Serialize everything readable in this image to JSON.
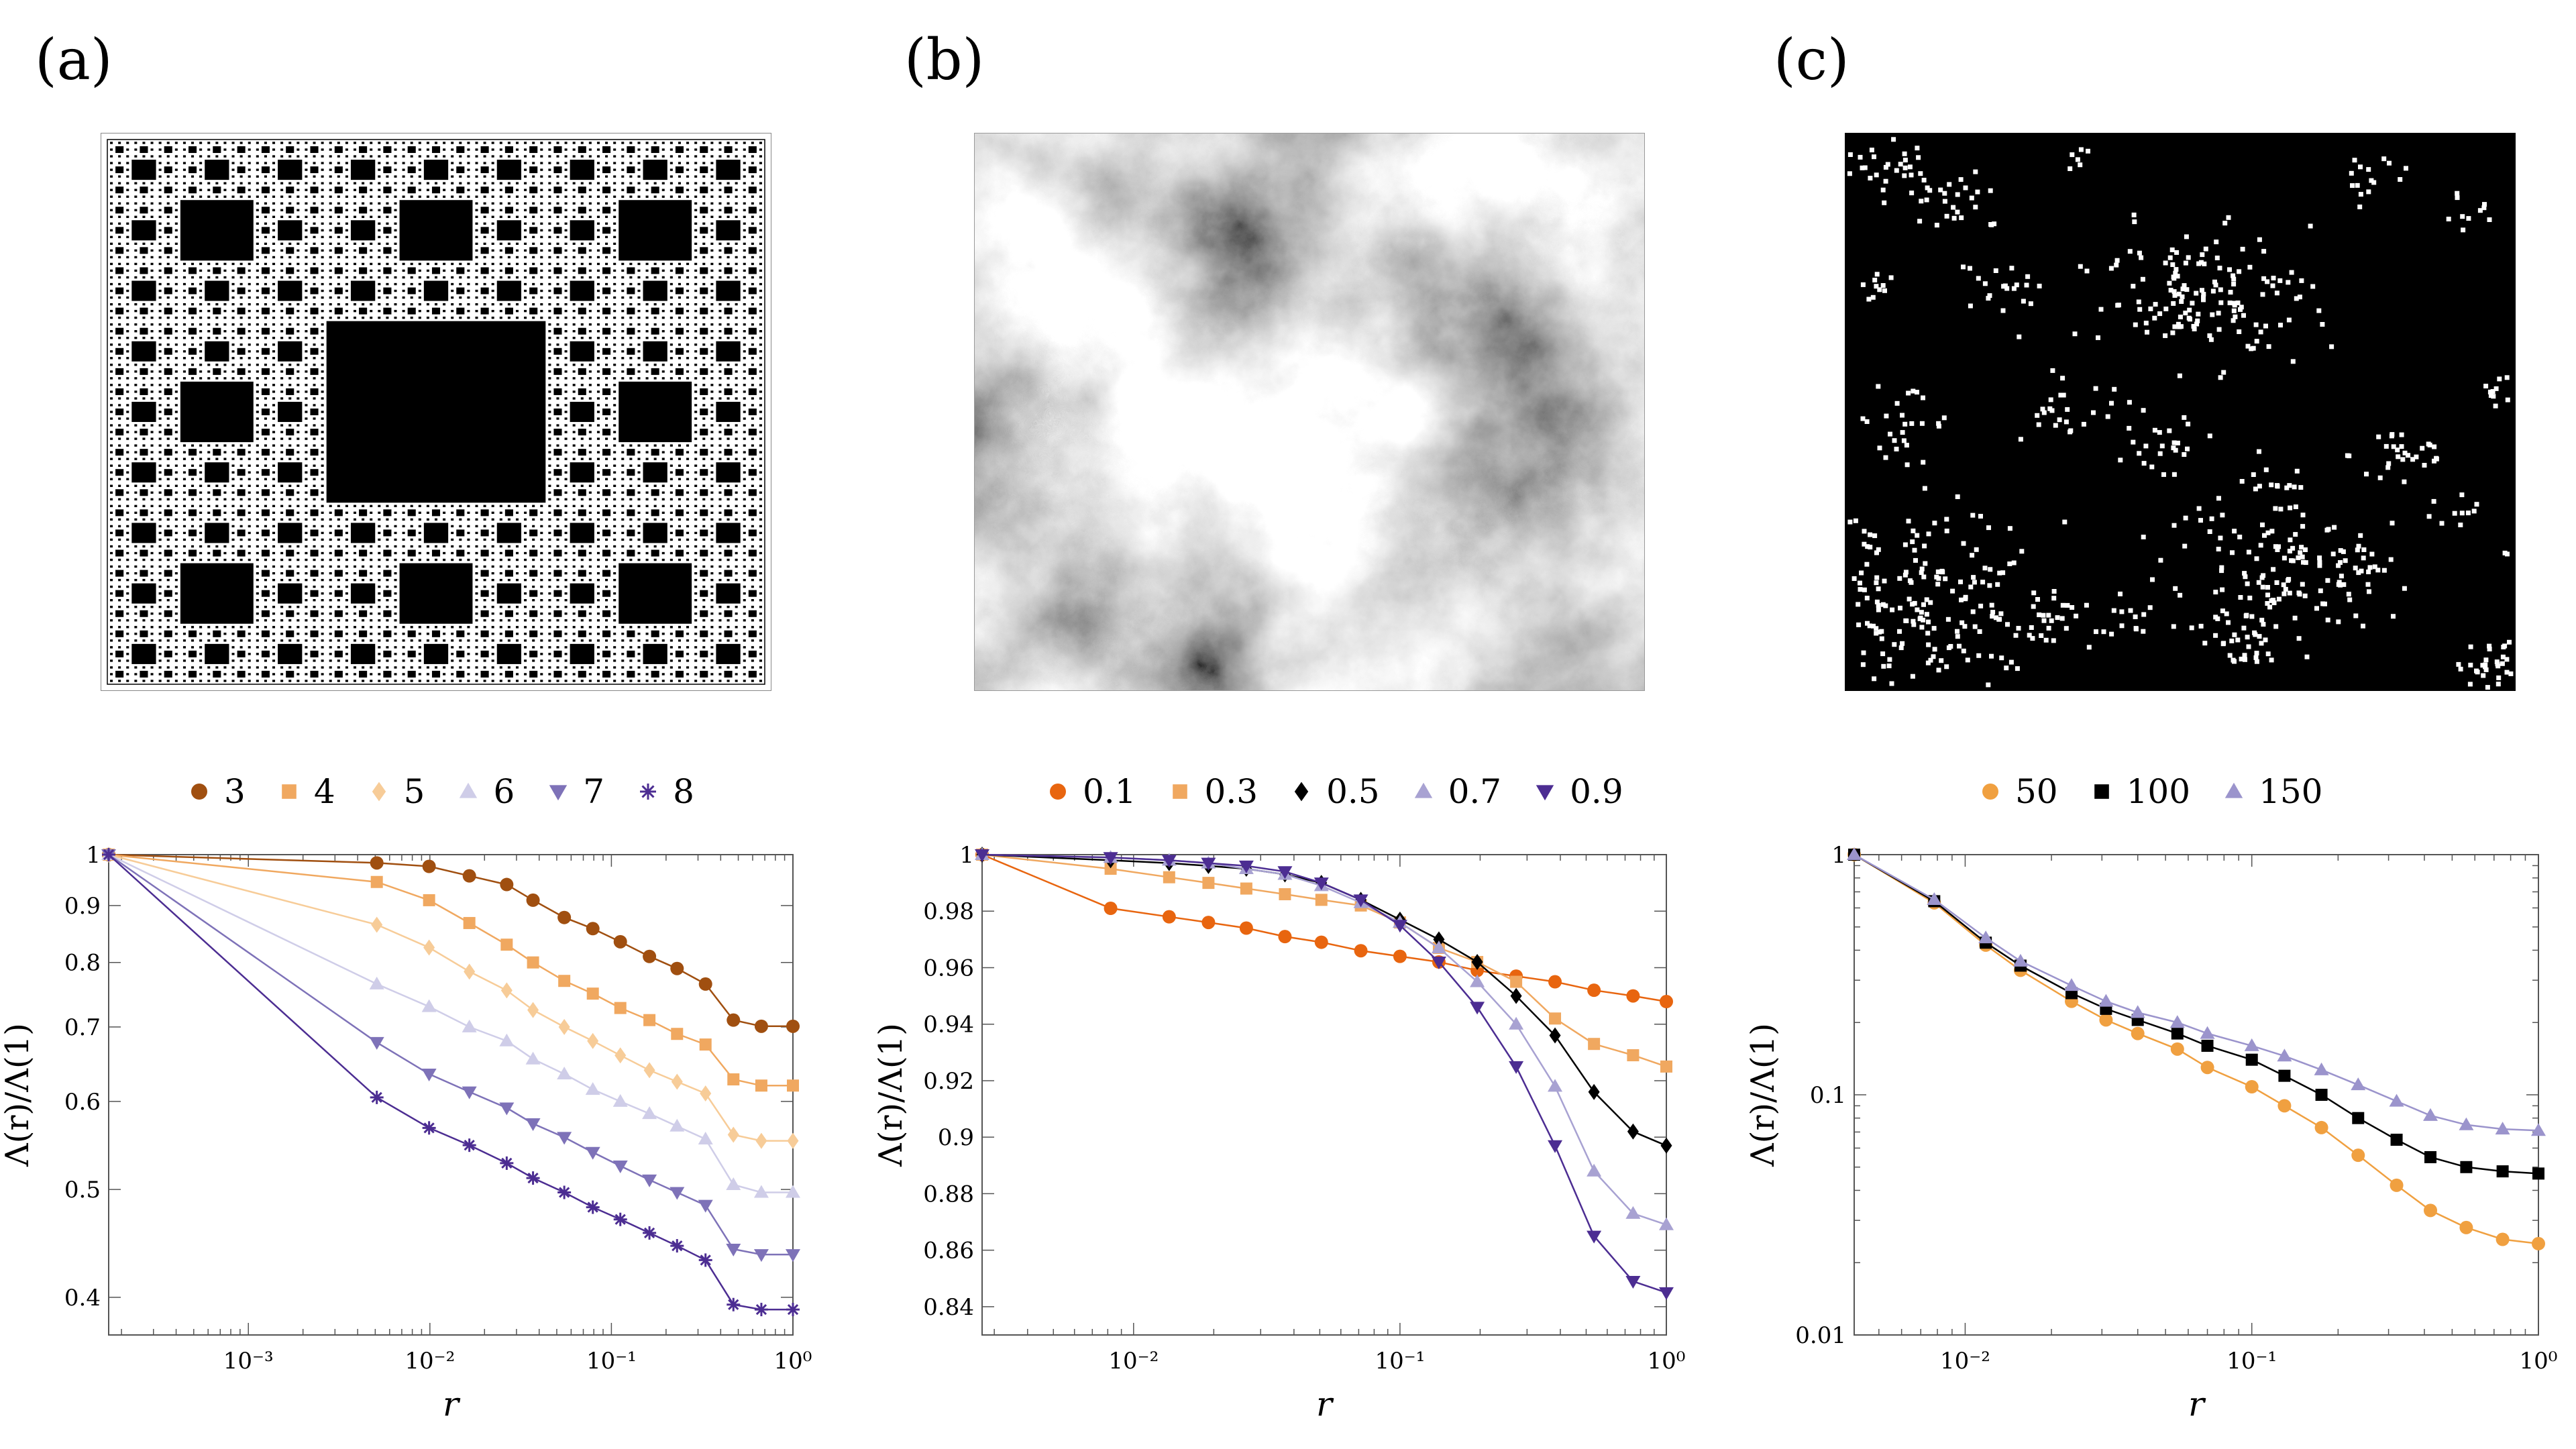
{
  "panels": [
    {
      "letter": "(a)",
      "image": "sierpinski-carpet"
    },
    {
      "letter": "(b)",
      "image": "fractional-gaussian-field"
    },
    {
      "letter": "(c)",
      "image": "clustered-point-pattern"
    }
  ],
  "colors": {
    "dark_orange": "#a04f10",
    "orange": "#e8650f",
    "light_orange": "#f0a860",
    "peach": "#f7cc98",
    "lavender": "#cfcde8",
    "light_purple": "#a8a2d2",
    "mid_purple": "#7e72b8",
    "dark_purple": "#4c2d92",
    "black": "#000000"
  },
  "chart_data": [
    {
      "type": "line",
      "xlabel": "r",
      "ylabel": "Λ(r)/Λ(1)",
      "xscale": "log",
      "yscale": "log",
      "xlim": [
        0.00017,
        1
      ],
      "ylim": [
        0.37,
        1.0
      ],
      "yticks": [
        "0.4",
        "0.5",
        "0.6",
        "0.7",
        "0.8",
        "0.9",
        "1"
      ],
      "ytick_values": [
        0.4,
        0.5,
        0.6,
        0.7,
        0.8,
        0.9,
        1.0
      ],
      "xticks": [
        "10⁻³",
        "10⁻²",
        "10⁻¹",
        "10⁰"
      ],
      "xtick_values": [
        0.001,
        0.01,
        0.1,
        1
      ],
      "legend_position": "top",
      "series": [
        {
          "name": "3",
          "marker": "circle",
          "color": "#a04f10",
          "x": [
            0.00017,
            0.0051,
            0.0099,
            0.0165,
            0.0265,
            0.037,
            0.055,
            0.079,
            0.112,
            0.162,
            0.23,
            0.33,
            0.47,
            0.67,
            1.0
          ],
          "y": [
            1.0,
            0.983,
            0.976,
            0.957,
            0.94,
            0.91,
            0.878,
            0.858,
            0.835,
            0.81,
            0.79,
            0.765,
            0.71,
            0.701,
            0.701
          ]
        },
        {
          "name": "4",
          "marker": "square",
          "color": "#f0a860",
          "x": [
            0.00017,
            0.0051,
            0.0099,
            0.0165,
            0.0265,
            0.037,
            0.055,
            0.079,
            0.112,
            0.162,
            0.23,
            0.33,
            0.47,
            0.67,
            1.0
          ],
          "y": [
            1.0,
            0.945,
            0.91,
            0.868,
            0.83,
            0.8,
            0.77,
            0.75,
            0.728,
            0.71,
            0.69,
            0.675,
            0.628,
            0.62,
            0.62
          ]
        },
        {
          "name": "5",
          "marker": "diamond",
          "color": "#f7cc98",
          "x": [
            0.00017,
            0.0051,
            0.0099,
            0.0165,
            0.0265,
            0.037,
            0.055,
            0.079,
            0.112,
            0.162,
            0.23,
            0.33,
            0.47,
            0.67,
            1.0
          ],
          "y": [
            1.0,
            0.865,
            0.825,
            0.785,
            0.755,
            0.725,
            0.7,
            0.68,
            0.66,
            0.64,
            0.625,
            0.61,
            0.56,
            0.553,
            0.553
          ]
        },
        {
          "name": "6",
          "marker": "triangle-up",
          "color": "#cfcde8",
          "x": [
            0.00017,
            0.0051,
            0.0099,
            0.0165,
            0.0265,
            0.037,
            0.055,
            0.079,
            0.112,
            0.162,
            0.23,
            0.33,
            0.47,
            0.67,
            1.0
          ],
          "y": [
            1.0,
            0.765,
            0.73,
            0.7,
            0.68,
            0.655,
            0.635,
            0.615,
            0.6,
            0.585,
            0.57,
            0.555,
            0.505,
            0.497,
            0.497
          ]
        },
        {
          "name": "7",
          "marker": "triangle-down",
          "color": "#7e72b8",
          "x": [
            0.00017,
            0.0051,
            0.0099,
            0.0165,
            0.0265,
            0.037,
            0.055,
            0.079,
            0.112,
            0.162,
            0.23,
            0.33,
            0.47,
            0.67,
            1.0
          ],
          "y": [
            1.0,
            0.678,
            0.635,
            0.612,
            0.592,
            0.573,
            0.557,
            0.54,
            0.525,
            0.51,
            0.497,
            0.484,
            0.442,
            0.437,
            0.437
          ]
        },
        {
          "name": "8",
          "marker": "star",
          "color": "#4c2d92",
          "x": [
            0.00017,
            0.0051,
            0.0099,
            0.0165,
            0.0265,
            0.037,
            0.055,
            0.079,
            0.112,
            0.162,
            0.23,
            0.33,
            0.47,
            0.67,
            1.0
          ],
          "y": [
            1.0,
            0.605,
            0.568,
            0.548,
            0.528,
            0.512,
            0.497,
            0.482,
            0.47,
            0.457,
            0.445,
            0.432,
            0.394,
            0.39,
            0.39
          ]
        }
      ]
    },
    {
      "type": "line",
      "xlabel": "r",
      "ylabel": "Λ(r)/Λ(1)",
      "xscale": "log",
      "yscale": "linear",
      "xlim": [
        0.0027,
        1
      ],
      "ylim": [
        0.83,
        1.0
      ],
      "yticks": [
        "0.84",
        "0.86",
        "0.88",
        "0.9",
        "0.92",
        "0.94",
        "0.96",
        "0.98",
        "1"
      ],
      "ytick_values": [
        0.84,
        0.86,
        0.88,
        0.9,
        0.92,
        0.94,
        0.96,
        0.98,
        1.0
      ],
      "xticks": [
        "10⁻²",
        "10⁻¹",
        "10⁰"
      ],
      "xtick_values": [
        0.01,
        0.1,
        1
      ],
      "legend_position": "top",
      "series": [
        {
          "name": "0.1",
          "marker": "circle",
          "color": "#e8650f",
          "x": [
            0.0027,
            0.0082,
            0.0136,
            0.0191,
            0.0265,
            0.037,
            0.0507,
            0.0713,
            0.1,
            0.14,
            0.195,
            0.273,
            0.382,
            0.535,
            0.75,
            1.0
          ],
          "y": [
            1.0,
            0.981,
            0.978,
            0.976,
            0.974,
            0.971,
            0.969,
            0.966,
            0.964,
            0.962,
            0.959,
            0.957,
            0.955,
            0.952,
            0.95,
            0.948
          ]
        },
        {
          "name": "0.3",
          "marker": "square",
          "color": "#f0a860",
          "x": [
            0.0027,
            0.0082,
            0.0136,
            0.0191,
            0.0265,
            0.037,
            0.0507,
            0.0713,
            0.1,
            0.14,
            0.195,
            0.273,
            0.382,
            0.535,
            0.75,
            1.0
          ],
          "y": [
            1.0,
            0.995,
            0.992,
            0.99,
            0.988,
            0.986,
            0.984,
            0.982,
            0.976,
            0.967,
            0.962,
            0.955,
            0.942,
            0.933,
            0.929,
            0.925
          ]
        },
        {
          "name": "0.5",
          "marker": "diamond",
          "color": "#000000",
          "x": [
            0.0027,
            0.0082,
            0.0136,
            0.0191,
            0.0265,
            0.037,
            0.0507,
            0.0713,
            0.1,
            0.14,
            0.195,
            0.273,
            0.382,
            0.535,
            0.75,
            1.0
          ],
          "y": [
            1.0,
            0.998,
            0.997,
            0.996,
            0.995,
            0.993,
            0.99,
            0.984,
            0.977,
            0.97,
            0.962,
            0.95,
            0.936,
            0.916,
            0.902,
            0.897
          ]
        },
        {
          "name": "0.7",
          "marker": "triangle-up",
          "color": "#a8a2d2",
          "x": [
            0.0027,
            0.0082,
            0.0136,
            0.0191,
            0.0265,
            0.037,
            0.0507,
            0.0713,
            0.1,
            0.14,
            0.195,
            0.273,
            0.382,
            0.535,
            0.75,
            1.0
          ],
          "y": [
            1.0,
            0.999,
            0.998,
            0.997,
            0.995,
            0.993,
            0.989,
            0.983,
            0.976,
            0.967,
            0.955,
            0.94,
            0.918,
            0.888,
            0.873,
            0.869
          ]
        },
        {
          "name": "0.9",
          "marker": "triangle-down",
          "color": "#4c2d92",
          "x": [
            0.0027,
            0.0082,
            0.0136,
            0.0191,
            0.0265,
            0.037,
            0.0507,
            0.0713,
            0.1,
            0.14,
            0.195,
            0.273,
            0.382,
            0.535,
            0.75,
            1.0
          ],
          "y": [
            1.0,
            0.999,
            0.998,
            0.997,
            0.996,
            0.994,
            0.99,
            0.984,
            0.975,
            0.962,
            0.946,
            0.925,
            0.897,
            0.865,
            0.849,
            0.845
          ]
        }
      ]
    },
    {
      "type": "line",
      "xlabel": "r",
      "ylabel": "Λ(r)/Λ(1)",
      "xscale": "log",
      "yscale": "log",
      "xlim": [
        0.0041,
        1
      ],
      "ylim": [
        0.01,
        1.0
      ],
      "yticks": [
        "0.01",
        "0.1",
        "1"
      ],
      "ytick_values": [
        0.01,
        0.1,
        1.0
      ],
      "xticks": [
        "10⁻²",
        "10⁻¹",
        "10⁰"
      ],
      "xtick_values": [
        0.01,
        0.1,
        1
      ],
      "legend_position": "top",
      "series": [
        {
          "name": "50",
          "marker": "circle",
          "color": "#f0a040",
          "x": [
            0.0041,
            0.0078,
            0.0118,
            0.0156,
            0.0235,
            0.031,
            0.04,
            0.055,
            0.07,
            0.1,
            0.13,
            0.175,
            0.235,
            0.32,
            0.42,
            0.56,
            0.75,
            1.0
          ],
          "y": [
            1.0,
            0.63,
            0.42,
            0.33,
            0.245,
            0.205,
            0.18,
            0.155,
            0.13,
            0.108,
            0.09,
            0.073,
            0.056,
            0.042,
            0.033,
            0.028,
            0.025,
            0.024
          ]
        },
        {
          "name": "100",
          "marker": "square",
          "color": "#000000",
          "x": [
            0.0041,
            0.0078,
            0.0118,
            0.0156,
            0.0235,
            0.031,
            0.04,
            0.055,
            0.07,
            0.1,
            0.13,
            0.175,
            0.235,
            0.32,
            0.42,
            0.56,
            0.75,
            1.0
          ],
          "y": [
            1.0,
            0.64,
            0.43,
            0.345,
            0.265,
            0.228,
            0.205,
            0.18,
            0.16,
            0.14,
            0.12,
            0.1,
            0.08,
            0.065,
            0.055,
            0.05,
            0.048,
            0.047
          ]
        },
        {
          "name": "150",
          "marker": "triangle-up",
          "color": "#9b94cc",
          "x": [
            0.0041,
            0.0078,
            0.0118,
            0.0156,
            0.0235,
            0.031,
            0.04,
            0.055,
            0.07,
            0.1,
            0.13,
            0.175,
            0.235,
            0.32,
            0.42,
            0.56,
            0.75,
            1.0
          ],
          "y": [
            1.0,
            0.65,
            0.45,
            0.36,
            0.285,
            0.245,
            0.22,
            0.2,
            0.18,
            0.16,
            0.145,
            0.127,
            0.11,
            0.094,
            0.082,
            0.075,
            0.072,
            0.071
          ]
        }
      ]
    }
  ]
}
